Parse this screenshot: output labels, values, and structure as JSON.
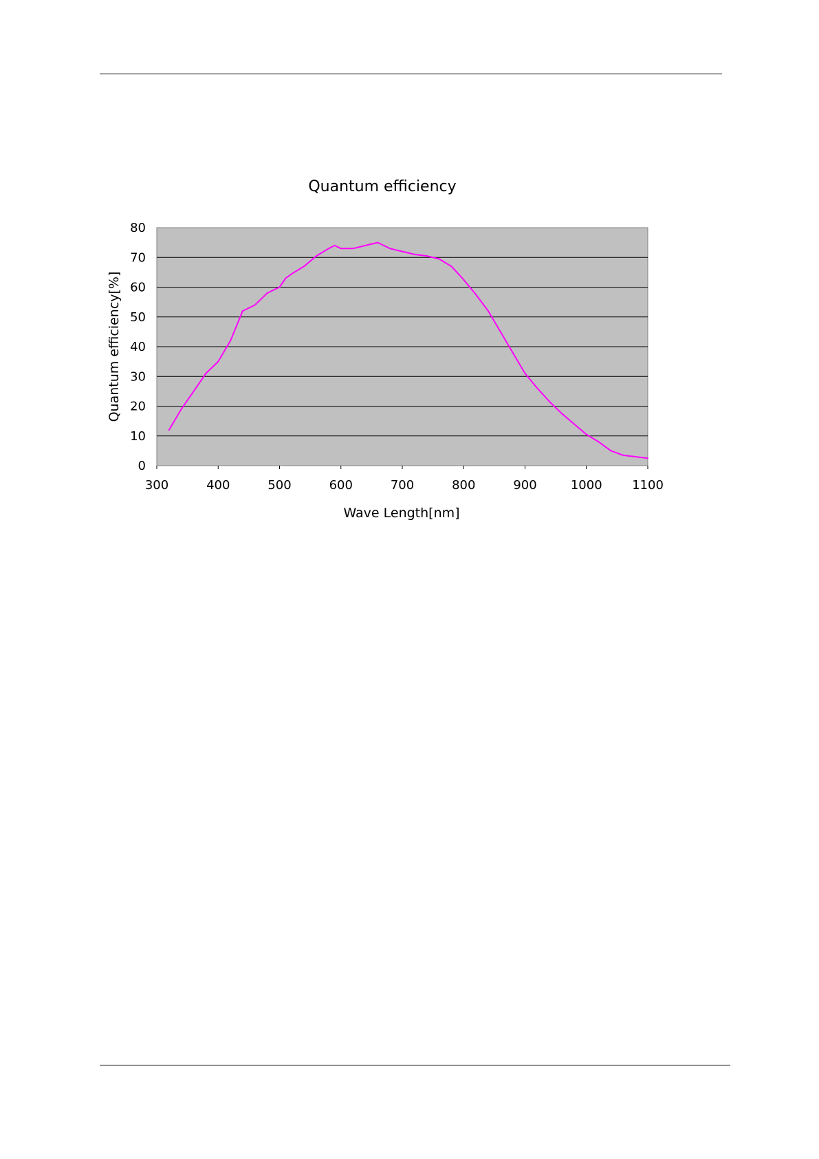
{
  "chart_data": {
    "type": "line",
    "title": "Quantum efficiency",
    "xlabel": "Wave Length[nm]",
    "ylabel": "Quantum efficiency[%]",
    "xlim": [
      300,
      1100
    ],
    "ylim": [
      0,
      80
    ],
    "xticks": [
      "300",
      "400",
      "500",
      "600",
      "700",
      "800",
      "900",
      "1000",
      "1100"
    ],
    "yticks": [
      "0",
      "10",
      "20",
      "30",
      "40",
      "50",
      "60",
      "70",
      "80"
    ],
    "grid": "horizontal",
    "legend": "none",
    "plot_background": "#c0c0c0",
    "series": [
      {
        "color": "#ff00ff",
        "x": [
          320,
          340,
          360,
          380,
          400,
          420,
          440,
          460,
          480,
          500,
          510,
          520,
          540,
          560,
          580,
          590,
          600,
          620,
          640,
          660,
          680,
          700,
          720,
          740,
          760,
          780,
          800,
          820,
          840,
          860,
          880,
          900,
          920,
          940,
          960,
          980,
          1000,
          1020,
          1040,
          1060,
          1080,
          1100
        ],
        "y": [
          12,
          19,
          25,
          31,
          35,
          42,
          52,
          54,
          58,
          60,
          63,
          64.5,
          67,
          70.5,
          73,
          74,
          73,
          73,
          74,
          75,
          73,
          72,
          71,
          70.5,
          69.5,
          67,
          62.5,
          57.5,
          52,
          45,
          38,
          31,
          26,
          21.5,
          17.5,
          14,
          10.5,
          8,
          5,
          3.5,
          3,
          2.5
        ]
      }
    ]
  }
}
